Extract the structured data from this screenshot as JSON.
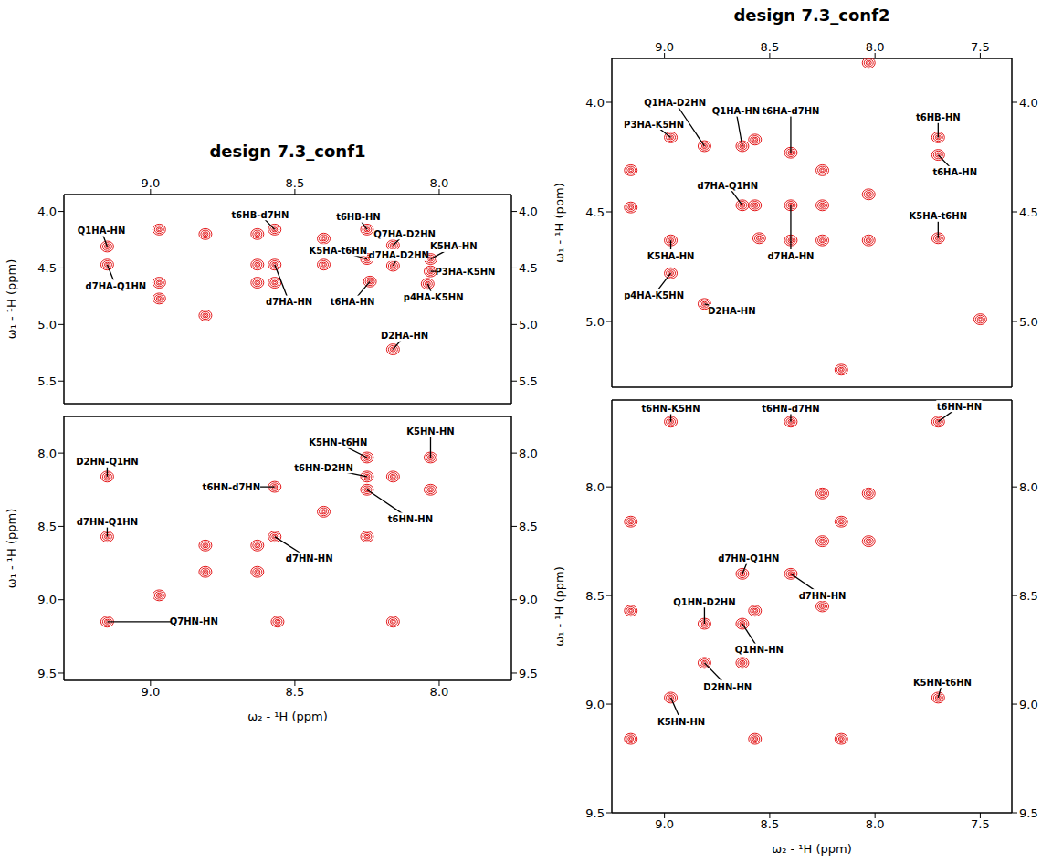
{
  "chart_data": [
    {
      "type": "scatter",
      "title": "design 7.3_conf1",
      "y_label": "ω₁ - ¹H (ppm)",
      "color": "#e41a1c",
      "xlim": [
        9.3,
        7.75
      ],
      "xticks": [
        {
          "value": 9,
          "label": "9.0"
        },
        8.5,
        {
          "value": 8,
          "label": "8.0"
        }
      ],
      "ylim": [
        3.85,
        5.7
      ],
      "yticks": [
        {
          "value": 4,
          "label": "4.0"
        },
        4.5,
        {
          "value": 5,
          "label": "5.0"
        },
        5.5
      ],
      "peaks": {
        "x": [
          9.15,
          9.15,
          8.97,
          8.97,
          8.97,
          8.81,
          8.81,
          8.63,
          8.63,
          8.63,
          8.57,
          8.57,
          8.57,
          8.4,
          8.4,
          8.25,
          8.25,
          8.24,
          8.16,
          8.16,
          8.16,
          8.03,
          8.03,
          8.04
        ],
        "y": [
          4.31,
          4.47,
          4.16,
          4.63,
          4.77,
          4.2,
          4.92,
          4.2,
          4.47,
          4.63,
          4.16,
          4.47,
          4.63,
          4.24,
          4.47,
          4.16,
          4.42,
          4.62,
          4.3,
          4.48,
          5.22,
          4.42,
          4.53,
          4.64
        ]
      },
      "annotations": [
        {
          "text": "Q1HA-HN",
          "x": 9.15,
          "y": 4.31,
          "label_x": 9.17,
          "label_y": 4.17
        },
        {
          "text": "d7HA-Q1HN",
          "x": 9.15,
          "y": 4.47,
          "label_x": 9.12,
          "label_y": 4.66
        },
        {
          "text": "t6HB-d7HN",
          "x": 8.57,
          "y": 4.16,
          "label_x": 8.62,
          "label_y": 4.03
        },
        {
          "text": "d7HA-HN",
          "x": 8.57,
          "y": 4.47,
          "label_x": 8.52,
          "label_y": 4.8
        },
        {
          "text": "t6HB-HN",
          "x": 8.25,
          "y": 4.16,
          "label_x": 8.28,
          "label_y": 4.05
        },
        {
          "text": "K5HA-t6HN",
          "x": 8.25,
          "y": 4.42,
          "label_x": 8.35,
          "label_y": 4.345
        },
        {
          "text": "Q7HA-D2HN",
          "x": 8.16,
          "y": 4.3,
          "label_x": 8.12,
          "label_y": 4.2
        },
        {
          "text": "d7HA-D2HN",
          "x": 8.16,
          "y": 4.48,
          "label_x": 8.14,
          "label_y": 4.39
        },
        {
          "text": "K5HA-HN",
          "x": 8.03,
          "y": 4.42,
          "label_x": 7.95,
          "label_y": 4.31
        },
        {
          "text": "P3HA-K5HN",
          "x": 8.03,
          "y": 4.53,
          "label_x": 7.91,
          "label_y": 4.53
        },
        {
          "text": "t6HA-HN",
          "x": 8.24,
          "y": 4.62,
          "label_x": 8.3,
          "label_y": 4.8
        },
        {
          "text": "p4HA-K5HN",
          "x": 8.04,
          "y": 4.64,
          "label_x": 8.02,
          "label_y": 4.76
        },
        {
          "text": "D2HA-HN",
          "x": 8.16,
          "y": 5.22,
          "label_x": 8.12,
          "label_y": 5.1
        }
      ]
    },
    {
      "type": "scatter",
      "x_label": "ω₂ - ¹H (ppm)",
      "y_label": "ω₁ - ¹H (ppm)",
      "color": "#e41a1c",
      "xlim": [
        9.3,
        7.75
      ],
      "xticks": [
        {
          "value": 9,
          "label": "9.0"
        },
        8.5,
        {
          "value": 8,
          "label": "8.0"
        }
      ],
      "ylim": [
        7.75,
        9.55
      ],
      "yticks": [
        {
          "value": 8,
          "label": "8.0"
        },
        8.5,
        {
          "value": 9,
          "label": "9.0"
        },
        9.5
      ],
      "peaks": {
        "x": [
          9.15,
          8.97,
          8.81,
          8.63,
          8.57,
          8.4,
          8.25,
          8.16,
          8.03,
          9.15,
          9.15,
          8.16,
          8.56,
          8.81,
          8.63,
          8.57,
          8.25,
          8.25,
          8.03,
          8.25
        ],
        "y": [
          9.15,
          8.97,
          8.81,
          8.63,
          8.57,
          8.4,
          8.25,
          8.16,
          8.03,
          8.16,
          8.57,
          9.15,
          9.15,
          8.63,
          8.81,
          8.23,
          8.03,
          8.16,
          8.25,
          8.57
        ]
      },
      "annotations": [
        {
          "text": "D2HN-Q1HN",
          "x": 9.15,
          "y": 8.16,
          "label_x": 9.15,
          "label_y": 8.06
        },
        {
          "text": "d7HN-Q1HN",
          "x": 9.15,
          "y": 8.57,
          "label_x": 9.15,
          "label_y": 8.47
        },
        {
          "text": "t6HN-d7HN",
          "x": 8.57,
          "y": 8.23,
          "label_x": 8.72,
          "label_y": 8.23
        },
        {
          "text": "K5HN-t6HN",
          "x": 8.25,
          "y": 8.03,
          "label_x": 8.35,
          "label_y": 7.93
        },
        {
          "text": "K5HN-HN",
          "x": 8.03,
          "y": 8.03,
          "label_x": 8.03,
          "label_y": 7.85
        },
        {
          "text": "t6HN-D2HN",
          "x": 8.25,
          "y": 8.16,
          "label_x": 8.4,
          "label_y": 8.1
        },
        {
          "text": "t6HN-HN",
          "x": 8.25,
          "y": 8.25,
          "label_x": 8.1,
          "label_y": 8.45
        },
        {
          "text": "d7HN-HN",
          "x": 8.57,
          "y": 8.57,
          "label_x": 8.45,
          "label_y": 8.72
        },
        {
          "text": "Q7HN-HN",
          "x": 9.15,
          "y": 9.15,
          "label_x": 8.85,
          "label_y": 9.15
        }
      ]
    },
    {
      "type": "scatter",
      "title": "design 7.3_conf2",
      "y_label": "ω₁ - ¹H (ppm)",
      "color": "#e41a1c",
      "xlim": [
        9.25,
        7.35
      ],
      "xticks": [
        {
          "value": 9,
          "label": "9.0"
        },
        8.5,
        {
          "value": 8,
          "label": "8.0"
        },
        7.5
      ],
      "ylim": [
        3.8,
        5.3
      ],
      "yticks": [
        {
          "value": 4,
          "label": "4.0"
        },
        4.5,
        {
          "value": 5,
          "label": "5.0"
        }
      ],
      "peaks": {
        "x": [
          9.16,
          9.16,
          8.97,
          8.97,
          8.97,
          8.81,
          8.81,
          8.63,
          8.63,
          8.57,
          8.57,
          8.55,
          8.4,
          8.4,
          8.4,
          8.25,
          8.25,
          8.25,
          8.16,
          8.03,
          8.03,
          8.03,
          7.7,
          7.7,
          7.7,
          7.5
        ],
        "y": [
          4.31,
          4.48,
          4.16,
          4.63,
          4.78,
          4.2,
          4.92,
          4.2,
          4.47,
          4.17,
          4.47,
          4.62,
          4.23,
          4.47,
          4.63,
          4.31,
          4.47,
          4.63,
          5.22,
          3.82,
          4.42,
          4.63,
          4.16,
          4.24,
          4.62,
          4.99
        ]
      },
      "annotations": [
        {
          "text": "P3HA-K5HN",
          "x": 8.97,
          "y": 4.16,
          "label_x": 9.05,
          "label_y": 4.1
        },
        {
          "text": "Q1HA-D2HN",
          "x": 8.81,
          "y": 4.2,
          "label_x": 8.95,
          "label_y": 4.0
        },
        {
          "text": "Q1HA-HN",
          "x": 8.63,
          "y": 4.2,
          "label_x": 8.66,
          "label_y": 4.04
        },
        {
          "text": "t6HA-d7HN",
          "x": 8.4,
          "y": 4.23,
          "label_x": 8.4,
          "label_y": 4.04
        },
        {
          "text": "t6HB-HN",
          "x": 7.7,
          "y": 4.16,
          "label_x": 7.7,
          "label_y": 4.07
        },
        {
          "text": "t6HA-HN",
          "x": 7.7,
          "y": 4.24,
          "label_x": 7.62,
          "label_y": 4.32
        },
        {
          "text": "K5HA-t6HN",
          "x": 7.7,
          "y": 4.62,
          "label_x": 7.7,
          "label_y": 4.52
        },
        {
          "text": "d7HA-Q1HN",
          "x": 8.63,
          "y": 4.47,
          "label_x": 8.7,
          "label_y": 4.38
        },
        {
          "text": "d7HA-HN",
          "x": 8.4,
          "y": 4.47,
          "label_x": 8.4,
          "label_y": 4.7
        },
        {
          "text": "K5HA-HN",
          "x": 8.97,
          "y": 4.63,
          "label_x": 8.97,
          "label_y": 4.7
        },
        {
          "text": "p4HA-K5HN",
          "x": 8.97,
          "y": 4.78,
          "label_x": 9.05,
          "label_y": 4.88
        },
        {
          "text": "D2HA-HN",
          "x": 8.81,
          "y": 4.92,
          "label_x": 8.68,
          "label_y": 4.95
        }
      ]
    },
    {
      "type": "scatter",
      "x_label": "ω₂ - ¹H (ppm)",
      "y_label": "ω₁ - ¹H (ppm)",
      "color": "#e41a1c",
      "xlim": [
        9.25,
        7.35
      ],
      "xticks": [
        {
          "value": 9,
          "label": "9.0"
        },
        8.5,
        {
          "value": 8,
          "label": "8.0"
        },
        7.5
      ],
      "ylim": [
        7.6,
        9.5
      ],
      "yticks": [
        {
          "value": 8,
          "label": "8.0"
        },
        8.5,
        {
          "value": 9,
          "label": "9.0"
        },
        9.5
      ],
      "peaks": {
        "x": [
          9.16,
          8.97,
          8.81,
          8.63,
          8.57,
          8.4,
          8.25,
          8.16,
          8.03,
          7.7,
          9.16,
          8.16,
          8.97,
          8.4,
          7.7,
          8.63,
          8.81,
          8.63,
          8.03,
          8.25,
          8.57,
          9.16,
          8.25
        ],
        "y": [
          9.16,
          8.97,
          8.81,
          8.63,
          8.57,
          8.4,
          8.25,
          8.16,
          8.03,
          7.7,
          8.16,
          9.16,
          7.7,
          7.7,
          8.97,
          8.4,
          8.63,
          8.81,
          8.25,
          8.03,
          9.16,
          8.57,
          8.55
        ]
      },
      "annotations": [
        {
          "text": "t6HN-K5HN",
          "x": 8.97,
          "y": 7.7,
          "label_x": 8.97,
          "label_y": 7.64
        },
        {
          "text": "t6HN-d7HN",
          "x": 8.4,
          "y": 7.7,
          "label_x": 8.4,
          "label_y": 7.64
        },
        {
          "text": "t6HN-HN",
          "x": 7.7,
          "y": 7.7,
          "label_x": 7.6,
          "label_y": 7.63
        },
        {
          "text": "d7HN-Q1HN",
          "x": 8.63,
          "y": 8.4,
          "label_x": 8.6,
          "label_y": 8.33
        },
        {
          "text": "Q1HN-D2HN",
          "x": 8.81,
          "y": 8.63,
          "label_x": 8.81,
          "label_y": 8.53
        },
        {
          "text": "d7HN-HN",
          "x": 8.4,
          "y": 8.4,
          "label_x": 8.25,
          "label_y": 8.5
        },
        {
          "text": "Q1HN-HN",
          "x": 8.63,
          "y": 8.63,
          "label_x": 8.55,
          "label_y": 8.75
        },
        {
          "text": "D2HN-HN",
          "x": 8.81,
          "y": 8.81,
          "label_x": 8.7,
          "label_y": 8.92
        },
        {
          "text": "K5HN-HN",
          "x": 8.97,
          "y": 8.97,
          "label_x": 8.92,
          "label_y": 9.08
        },
        {
          "text": "K5HN-t6HN",
          "x": 7.7,
          "y": 8.97,
          "label_x": 7.68,
          "label_y": 8.9
        }
      ]
    }
  ]
}
